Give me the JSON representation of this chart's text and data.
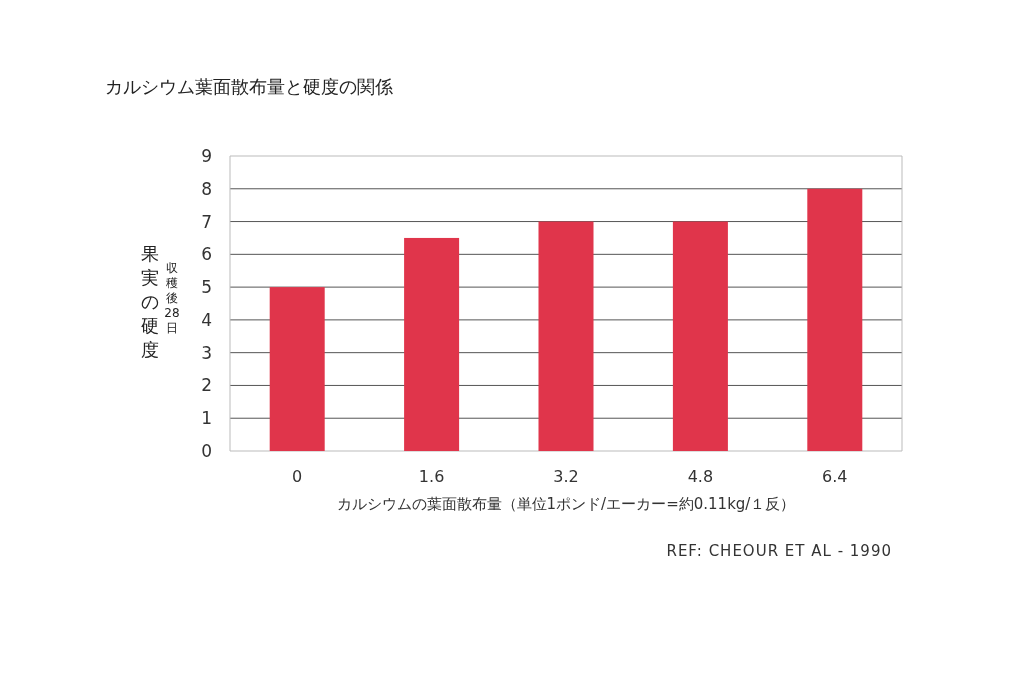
{
  "chart_data": {
    "type": "bar",
    "title": "カルシウム葉面散布量と硬度の関係",
    "xlabel": "カルシウムの葉面散布量（単位1ポンド/エーカー=約0.11kg/１反）",
    "ylabel": "果実の硬度",
    "annotations": [
      "収穫後28日",
      "REF: CHEOUR ET AL - 1990"
    ],
    "categories": [
      "0",
      "1.6",
      "3.2",
      "4.8",
      "6.4"
    ],
    "values": [
      5,
      6.5,
      7,
      7,
      8
    ],
    "color": "#e0354b",
    "ylim": [
      0,
      9
    ],
    "yticks": [
      0,
      1,
      2,
      3,
      4,
      5,
      6,
      7,
      8,
      9
    ],
    "grid": "y"
  }
}
